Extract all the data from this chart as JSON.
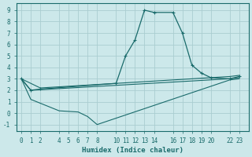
{
  "xlabel": "Humidex (Indice chaleur)",
  "bg_color": "#cce8ea",
  "grid_color": "#aacdd0",
  "line_color": "#1a6b6b",
  "xlim": [
    -0.5,
    24.0
  ],
  "ylim": [
    -1.6,
    9.6
  ],
  "xticks": [
    0,
    1,
    2,
    4,
    5,
    6,
    7,
    8,
    10,
    11,
    12,
    13,
    14,
    16,
    17,
    18,
    19,
    20,
    22,
    23
  ],
  "yticks": [
    -1,
    0,
    1,
    2,
    3,
    4,
    5,
    6,
    7,
    8,
    9
  ],
  "main_x": [
    0,
    1,
    2,
    10,
    11,
    12,
    13,
    14,
    16,
    17,
    18,
    19,
    20,
    22,
    23
  ],
  "main_y": [
    3.0,
    2.0,
    2.1,
    2.6,
    5.0,
    6.4,
    9.0,
    8.8,
    8.8,
    7.0,
    4.2,
    3.5,
    3.1,
    3.0,
    3.2
  ],
  "line2_x": [
    0,
    2,
    22,
    23
  ],
  "line2_y": [
    3.0,
    2.2,
    3.2,
    3.3
  ],
  "line3_x": [
    0,
    1,
    22,
    23
  ],
  "line3_y": [
    3.0,
    2.0,
    3.0,
    3.1
  ],
  "line4_x": [
    0,
    1,
    4,
    5,
    6,
    7,
    8,
    22,
    23
  ],
  "line4_y": [
    3.0,
    1.2,
    0.2,
    0.15,
    0.1,
    -0.3,
    -1.0,
    2.9,
    3.0
  ]
}
